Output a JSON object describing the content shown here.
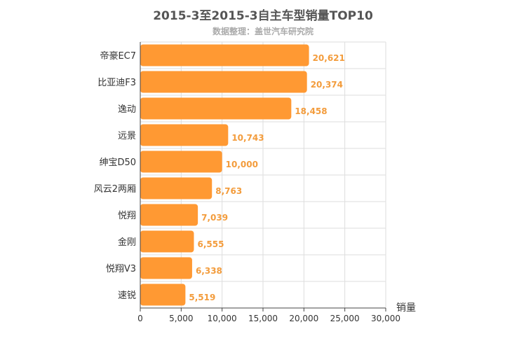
{
  "chart_data": {
    "type": "bar",
    "orientation": "horizontal",
    "title": "2015-3至2015-3自主车型销量TOP10",
    "subtitle": "数据整理：盖世汽车研究院",
    "xlabel": "销量",
    "ylabel": "",
    "categories": [
      "帝豪EC7",
      "比亚迪F3",
      "逸动",
      "远景",
      "绅宝D50",
      "风云2两厢",
      "悦翔",
      "金刚",
      "悦翔V3",
      "速锐"
    ],
    "values": [
      20621,
      20374,
      18458,
      10743,
      10000,
      8763,
      7039,
      6555,
      6338,
      5519
    ],
    "value_labels": [
      "20,621",
      "20,374",
      "18,458",
      "10,743",
      "10,000",
      "8,763",
      "7,039",
      "6,555",
      "6,338",
      "5,519"
    ],
    "xlim": [
      0,
      30000
    ],
    "x_ticks": [
      0,
      5000,
      10000,
      15000,
      20000,
      25000,
      30000
    ],
    "x_tick_labels": [
      "0",
      "5,000",
      "10,000",
      "15,000",
      "20,000",
      "25,000",
      "30,000"
    ],
    "bar_color": "#ff9933",
    "value_label_color": "#f39c3c",
    "grid": true,
    "legend": "none"
  }
}
